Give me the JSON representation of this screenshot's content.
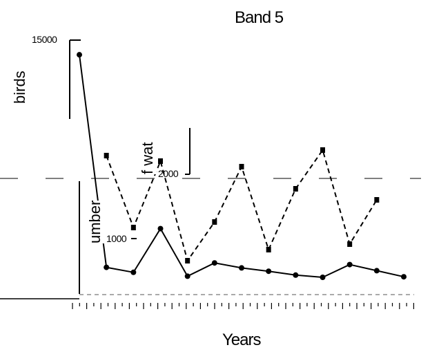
{
  "chart_data": {
    "type": "line",
    "title": "Band 5",
    "xlabel": "Years",
    "ylabel_birds": "birds",
    "ylabel_number": "umber",
    "ylabel_water": "f wat",
    "ytick_15000": "15000",
    "ytick_2000": "2000",
    "ytick_1000": "1000",
    "series": [
      {
        "name": "",
        "marker": "circle",
        "x": [
          1,
          2,
          3,
          4,
          5,
          6,
          7,
          8,
          9,
          10,
          11,
          12,
          13
        ],
        "values": [
          13000,
          480,
          390,
          1180,
          320,
          560,
          470,
          410,
          340,
          300,
          530,
          420,
          310
        ]
      },
      {
        "name": "",
        "marker": "square",
        "x": [
          2,
          3,
          4,
          5,
          6,
          7,
          8,
          9,
          10,
          11,
          12
        ],
        "values": [
          2500,
          1200,
          2400,
          600,
          1300,
          2300,
          800,
          1900,
          2600,
          900,
          1700
        ]
      }
    ]
  }
}
